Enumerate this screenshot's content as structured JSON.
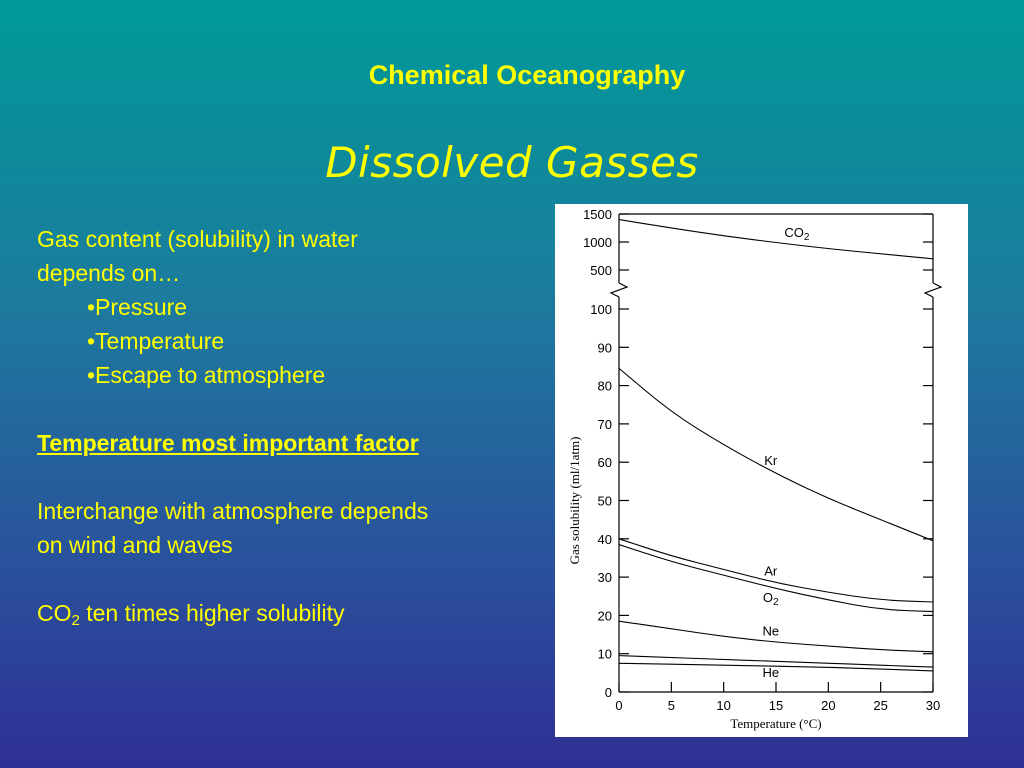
{
  "slide": {
    "title": "Chemical Oceanography",
    "subtitle": "Dissolved Gasses",
    "intro_line1": "Gas content (solubility) in water",
    "intro_line2": "depends on…",
    "bullets": [
      "•Pressure",
      "•Temperature",
      "•Escape to atmosphere"
    ],
    "emphasis": "Temperature most important factor",
    "interchange_line1": "Interchange with atmosphere depends",
    "interchange_line2": "on wind and waves",
    "co2_prefix": "CO",
    "co2_sub": "2",
    "co2_rest": " ten times higher solubility"
  },
  "colors": {
    "text": "#ffff00",
    "chart_bg": "#ffffff",
    "chart_ink": "#000000"
  },
  "chart_data": {
    "type": "line",
    "xlabel": "Temperature (°C)",
    "ylabel": "Gas solubility (ml/1atm)",
    "xlim": [
      0,
      30
    ],
    "x_ticks": [
      0,
      5,
      10,
      15,
      20,
      25,
      30
    ],
    "lower_ylim": [
      0,
      100
    ],
    "lower_y_ticks": [
      0,
      10,
      20,
      30,
      40,
      50,
      60,
      70,
      80,
      90,
      100
    ],
    "upper_y_ticks": [
      500,
      1000,
      1500
    ],
    "axis_break": "between 100 and 500",
    "grid": false,
    "series": [
      {
        "name": "CO",
        "name_sub": "2",
        "axis": "upper",
        "x": [
          0,
          5,
          10,
          15,
          20,
          25,
          30
        ],
        "values": [
          1400,
          1250,
          1110,
          990,
          880,
          790,
          700
        ]
      },
      {
        "name": "Kr",
        "axis": "lower",
        "x": [
          0,
          5,
          10,
          15,
          20,
          25,
          30
        ],
        "values": [
          84.5,
          73,
          64.5,
          57,
          50.5,
          45,
          39.5
        ]
      },
      {
        "name": "Ar",
        "axis": "lower",
        "x": [
          0,
          5,
          10,
          15,
          20,
          25,
          30
        ],
        "values": [
          40,
          35.5,
          32,
          28.5,
          26,
          24,
          23.5
        ]
      },
      {
        "name": "O",
        "name_sub": "2",
        "axis": "lower",
        "x": [
          0,
          5,
          10,
          15,
          20,
          25,
          30
        ],
        "values": [
          38.5,
          34,
          30.5,
          27,
          24,
          21.5,
          21
        ]
      },
      {
        "name": "Ne",
        "axis": "lower",
        "x": [
          0,
          5,
          10,
          15,
          20,
          25,
          30
        ],
        "values": [
          18.5,
          16.5,
          14.5,
          13,
          12,
          11,
          10.5
        ]
      },
      {
        "name": "He",
        "axis": "lower",
        "x": [
          0,
          5,
          10,
          15,
          20,
          25,
          30
        ],
        "values": [
          9.5,
          9,
          8.5,
          8,
          7.5,
          7,
          6.5
        ]
      },
      {
        "name": "",
        "axis": "lower",
        "x": [
          0,
          10,
          20,
          30
        ],
        "values": [
          7.5,
          7,
          6.5,
          5.5
        ]
      }
    ]
  }
}
